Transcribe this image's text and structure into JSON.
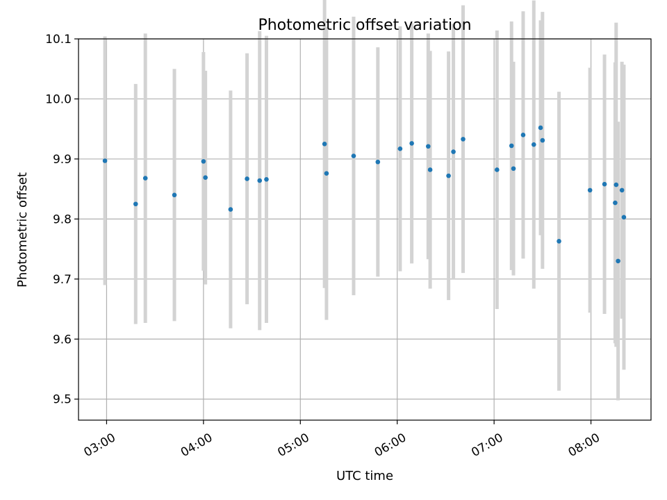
{
  "chart_data": {
    "type": "scatter",
    "title": "Photometric offset variation",
    "xlabel": "UTC time",
    "ylabel": "Photometric offset",
    "x_units": "hours UTC",
    "xlim": [
      2.71,
      8.62
    ],
    "ylim": [
      9.465,
      10.1
    ],
    "xticks": [
      3,
      4,
      5,
      6,
      7,
      8
    ],
    "xtick_labels": [
      "03:00",
      "04:00",
      "05:00",
      "06:00",
      "07:00",
      "08:00"
    ],
    "yticks": [
      9.5,
      9.6,
      9.7,
      9.8,
      9.9,
      10.0,
      10.1
    ],
    "ytick_labels": [
      "9.5",
      "9.6",
      "9.7",
      "9.8",
      "9.9",
      "10.0",
      "10.1"
    ],
    "grid": true,
    "colors": {
      "point": "#1f77b4",
      "errorbar": "#d3d3d3",
      "grid": "#b0b0b0"
    },
    "series": [
      {
        "x": [
          2.983,
          3.3,
          3.4,
          3.7,
          4.0,
          4.02,
          4.28,
          4.45,
          4.58,
          4.65,
          5.25,
          5.27,
          5.55,
          5.8,
          6.03,
          6.15,
          6.32,
          6.34,
          6.53,
          6.58,
          6.68,
          7.03,
          7.18,
          7.2,
          7.3,
          7.41,
          7.48,
          7.5,
          7.67,
          7.99,
          8.14,
          8.25,
          8.26,
          8.28,
          8.32,
          8.34
        ],
        "y": [
          9.897,
          9.825,
          9.868,
          9.84,
          9.896,
          9.869,
          9.816,
          9.867,
          9.864,
          9.866,
          9.925,
          9.876,
          9.905,
          9.895,
          9.917,
          9.926,
          9.921,
          9.882,
          9.872,
          9.912,
          9.933,
          9.882,
          9.922,
          9.884,
          9.94,
          9.924,
          9.952,
          9.931,
          9.763,
          9.848,
          9.858,
          9.827,
          9.857,
          9.73,
          9.848,
          9.803
        ],
        "yerr": [
          0.207,
          0.2,
          0.241,
          0.21,
          0.182,
          0.178,
          0.198,
          0.209,
          0.249,
          0.239,
          0.24,
          0.244,
          0.232,
          0.191,
          0.204,
          0.2,
          0.188,
          0.198,
          0.207,
          0.213,
          0.223,
          0.232,
          0.207,
          0.178,
          0.206,
          0.24,
          0.179,
          0.214,
          0.249,
          0.204,
          0.216,
          0.234,
          0.27,
          0.232,
          0.214,
          0.254
        ]
      }
    ]
  }
}
